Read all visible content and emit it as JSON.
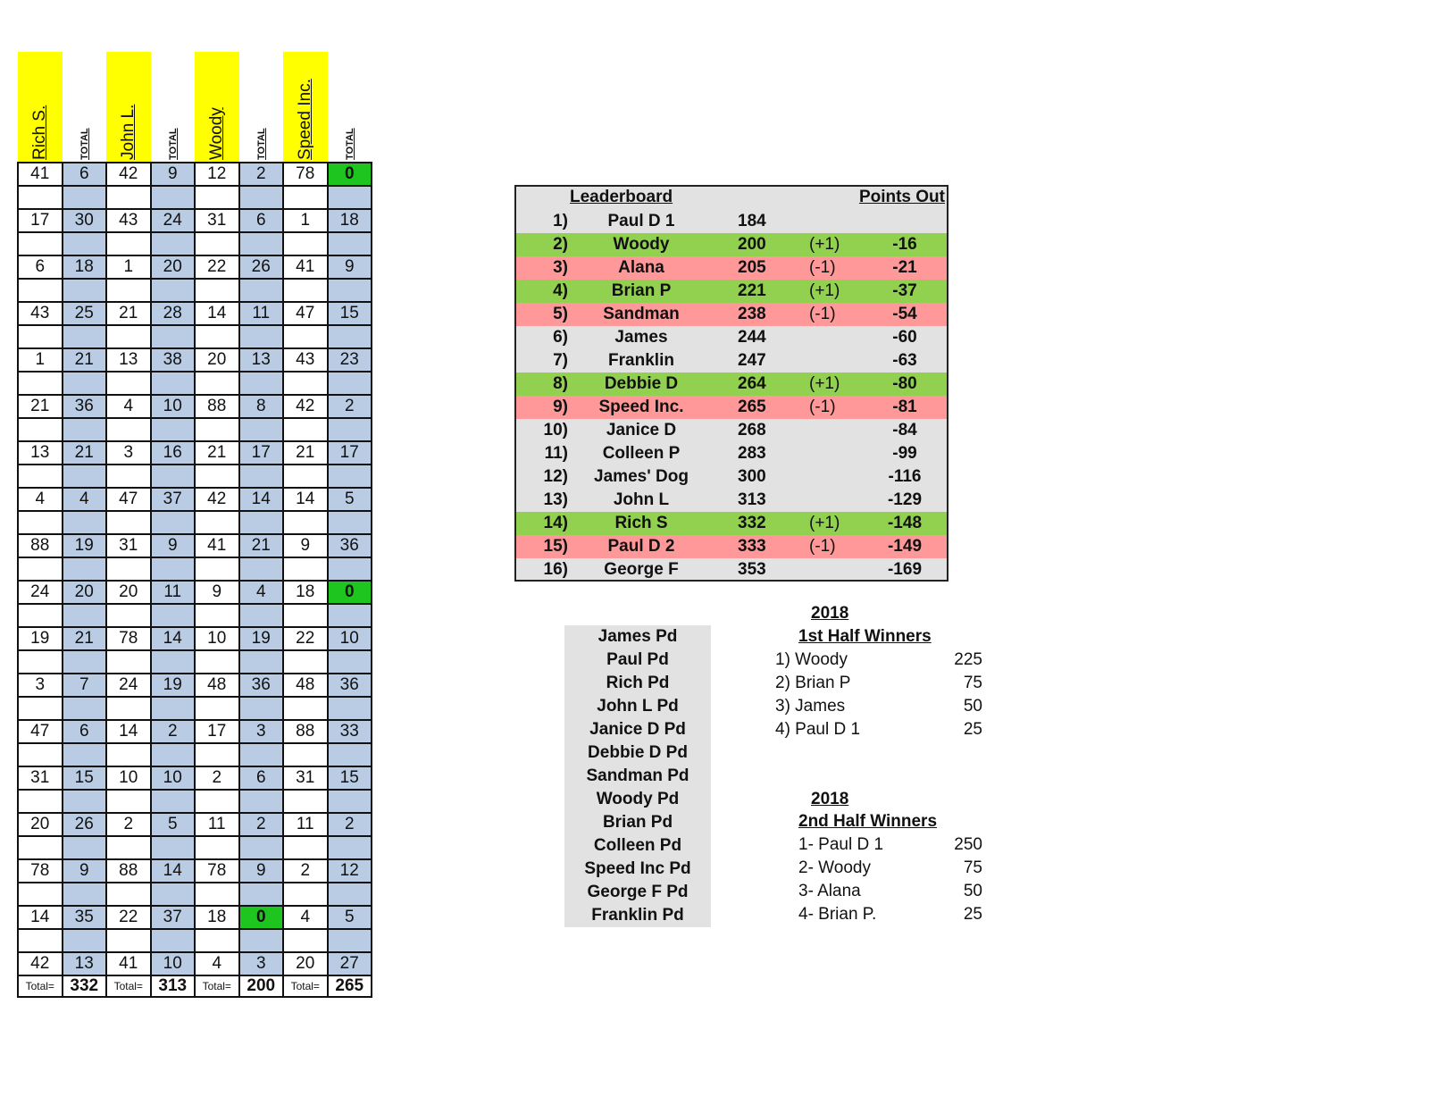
{
  "grid": {
    "headers": [
      {
        "name": "Rich S.",
        "total_label": "TOTAL"
      },
      {
        "name": "John L.",
        "total_label": "TOTAL"
      },
      {
        "name": "Woody",
        "total_label": "TOTAL"
      },
      {
        "name": "Speed Inc.",
        "total_label": "TOTAL"
      }
    ],
    "rows": [
      [
        "41",
        "6",
        "42",
        "9",
        "12",
        "2",
        "78",
        "0"
      ],
      [
        "",
        "",
        "",
        "",
        "",
        "",
        "",
        ""
      ],
      [
        "17",
        "30",
        "43",
        "24",
        "31",
        "6",
        "1",
        "18"
      ],
      [
        "",
        "",
        "",
        "",
        "",
        "",
        "",
        ""
      ],
      [
        "6",
        "18",
        "1",
        "20",
        "22",
        "26",
        "41",
        "9"
      ],
      [
        "",
        "",
        "",
        "",
        "",
        "",
        "",
        ""
      ],
      [
        "43",
        "25",
        "21",
        "28",
        "14",
        "11",
        "47",
        "15"
      ],
      [
        "",
        "",
        "",
        "",
        "",
        "",
        "",
        ""
      ],
      [
        "1",
        "21",
        "13",
        "38",
        "20",
        "13",
        "43",
        "23"
      ],
      [
        "",
        "",
        "",
        "",
        "",
        "",
        "",
        ""
      ],
      [
        "21",
        "36",
        "4",
        "10",
        "88",
        "8",
        "42",
        "2"
      ],
      [
        "",
        "",
        "",
        "",
        "",
        "",
        "",
        ""
      ],
      [
        "13",
        "21",
        "3",
        "16",
        "21",
        "17",
        "21",
        "17"
      ],
      [
        "",
        "",
        "",
        "",
        "",
        "",
        "",
        ""
      ],
      [
        "4",
        "4",
        "47",
        "37",
        "42",
        "14",
        "14",
        "5"
      ],
      [
        "",
        "",
        "",
        "",
        "",
        "",
        "",
        ""
      ],
      [
        "88",
        "19",
        "31",
        "9",
        "41",
        "21",
        "9",
        "36"
      ],
      [
        "",
        "",
        "",
        "",
        "",
        "",
        "",
        ""
      ],
      [
        "24",
        "20",
        "20",
        "11",
        "9",
        "4",
        "18",
        "0"
      ],
      [
        "",
        "",
        "",
        "",
        "",
        "",
        "",
        ""
      ],
      [
        "19",
        "21",
        "78",
        "14",
        "10",
        "19",
        "22",
        "10"
      ],
      [
        "",
        "",
        "",
        "",
        "",
        "",
        "",
        ""
      ],
      [
        "3",
        "7",
        "24",
        "19",
        "48",
        "36",
        "48",
        "36"
      ],
      [
        "",
        "",
        "",
        "",
        "",
        "",
        "",
        ""
      ],
      [
        "47",
        "6",
        "14",
        "2",
        "17",
        "3",
        "88",
        "33"
      ],
      [
        "",
        "",
        "",
        "",
        "",
        "",
        "",
        ""
      ],
      [
        "31",
        "15",
        "10",
        "10",
        "2",
        "6",
        "31",
        "15"
      ],
      [
        "",
        "",
        "",
        "",
        "",
        "",
        "",
        ""
      ],
      [
        "20",
        "26",
        "2",
        "5",
        "11",
        "2",
        "11",
        "2"
      ],
      [
        "",
        "",
        "",
        "",
        "",
        "",
        "",
        ""
      ],
      [
        "78",
        "9",
        "88",
        "14",
        "78",
        "9",
        "2",
        "12"
      ],
      [
        "",
        "",
        "",
        "",
        "",
        "",
        "",
        ""
      ],
      [
        "14",
        "35",
        "22",
        "37",
        "18",
        "0",
        "4",
        "5"
      ],
      [
        "",
        "",
        "",
        "",
        "",
        "",
        "",
        ""
      ],
      [
        "42",
        "13",
        "41",
        "10",
        "4",
        "3",
        "20",
        "27"
      ]
    ],
    "highlight_cells": [
      [
        0,
        7
      ],
      [
        18,
        7
      ],
      [
        32,
        5
      ]
    ],
    "totals": [
      {
        "label": "Total=",
        "value": "332"
      },
      {
        "label": "Total=",
        "value": "313"
      },
      {
        "label": "Total=",
        "value": "200"
      },
      {
        "label": "Total=",
        "value": "265"
      }
    ]
  },
  "leaderboard": {
    "title": "Leaderboard",
    "points_out_label": "Points Out",
    "rows": [
      {
        "rank": "1)",
        "name": "Paul D 1",
        "score": "184",
        "move": "",
        "out": "",
        "status": "none"
      },
      {
        "rank": "2)",
        "name": "Woody",
        "score": "200",
        "move": "(+1)",
        "out": "-16",
        "status": "up"
      },
      {
        "rank": "3)",
        "name": "Alana",
        "score": "205",
        "move": "(-1)",
        "out": "-21",
        "status": "down"
      },
      {
        "rank": "4)",
        "name": "Brian P",
        "score": "221",
        "move": "(+1)",
        "out": "-37",
        "status": "up"
      },
      {
        "rank": "5)",
        "name": "Sandman",
        "score": "238",
        "move": "(-1)",
        "out": "-54",
        "status": "down"
      },
      {
        "rank": "6)",
        "name": "James",
        "score": "244",
        "move": "",
        "out": "-60",
        "status": "none"
      },
      {
        "rank": "7)",
        "name": "Franklin",
        "score": "247",
        "move": "",
        "out": "-63",
        "status": "none"
      },
      {
        "rank": "8)",
        "name": "Debbie D",
        "score": "264",
        "move": "(+1)",
        "out": "-80",
        "status": "up"
      },
      {
        "rank": "9)",
        "name": "Speed Inc.",
        "score": "265",
        "move": "(-1)",
        "out": "-81",
        "status": "down"
      },
      {
        "rank": "10)",
        "name": "Janice D",
        "score": "268",
        "move": "",
        "out": "-84",
        "status": "none"
      },
      {
        "rank": "11)",
        "name": "Colleen P",
        "score": "283",
        "move": "",
        "out": "-99",
        "status": "none"
      },
      {
        "rank": "12)",
        "name": "James' Dog",
        "score": "300",
        "move": "",
        "out": "-116",
        "status": "none"
      },
      {
        "rank": "13)",
        "name": "John L",
        "score": "313",
        "move": "",
        "out": "-129",
        "status": "none"
      },
      {
        "rank": "14)",
        "name": "Rich S",
        "score": "332",
        "move": "(+1)",
        "out": "-148",
        "status": "up"
      },
      {
        "rank": "15)",
        "name": "Paul D 2",
        "score": "333",
        "move": "(-1)",
        "out": "-149",
        "status": "down"
      },
      {
        "rank": "16)",
        "name": "George F",
        "score": "353",
        "move": "",
        "out": "-169",
        "status": "none"
      }
    ]
  },
  "paid_list": [
    "James Pd",
    "Paul Pd",
    "Rich Pd",
    "John L Pd",
    "Janice D Pd",
    "Debbie D Pd",
    "Sandman Pd",
    "Woody Pd",
    "Brian Pd",
    "Colleen Pd",
    "Speed Inc Pd",
    "George F Pd",
    "Franklin Pd"
  ],
  "first_half": {
    "year": "2018",
    "title": "1st Half Winners",
    "rows": [
      {
        "label": "1) Woody",
        "amount": "225"
      },
      {
        "label": "2) Brian P",
        "amount": "75"
      },
      {
        "label": "3) James",
        "amount": "50"
      },
      {
        "label": "4) Paul D 1",
        "amount": "25"
      }
    ]
  },
  "second_half": {
    "year": "2018",
    "title": "2nd Half Winners",
    "rows": [
      {
        "label": "1- Paul D 1",
        "amount": "250"
      },
      {
        "label": "2- Woody",
        "amount": "75"
      },
      {
        "label": "3- Alana",
        "amount": "50"
      },
      {
        "label": "4- Brian P.",
        "amount": "25"
      }
    ]
  },
  "colors": {
    "header_yellow": "#ffff00",
    "total_col_blue": "#b9cce4",
    "zero_green": "#1fc51f",
    "up_green": "#92d050",
    "down_red": "#ff9999",
    "panel_gray": "#e2e2e2"
  }
}
